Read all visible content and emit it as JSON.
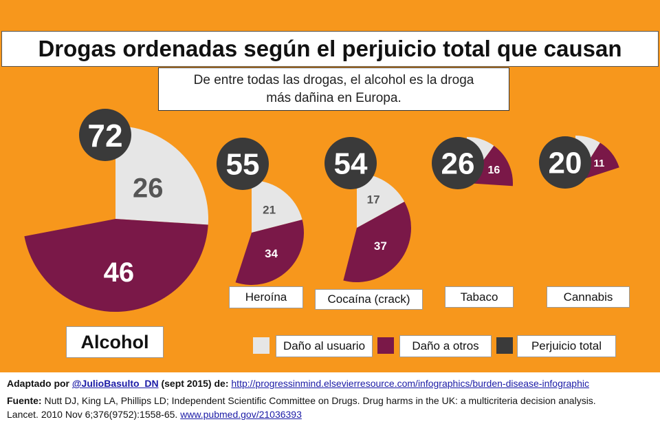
{
  "title": "Drogas ordenadas según el perjuicio total que causan",
  "subtitle_line1": "De entre todas las drogas, el alcohol es la droga",
  "subtitle_line2": "más dañina en Europa.",
  "colors": {
    "background": "#f7971c",
    "usuario": "#e6e6e6",
    "otros": "#7a1848",
    "total": "#3a3a3a"
  },
  "chart_data": {
    "type": "pie",
    "title": "Drogas ordenadas según el perjuicio total que causan",
    "subtitle": "De entre todas las drogas, el alcohol es la droga más dañina en Europa.",
    "scale_max": 100,
    "categories": [
      "Alcohol",
      "Heroína",
      "Cocaína (crack)",
      "Tabaco",
      "Cannabis"
    ],
    "series": [
      {
        "name": "Daño al usuario",
        "values": [
          26,
          21,
          17,
          10,
          9
        ]
      },
      {
        "name": "Daño a otros",
        "values": [
          46,
          34,
          37,
          16,
          11
        ]
      },
      {
        "name": "Perjuicio total",
        "values": [
          72,
          55,
          54,
          26,
          20
        ]
      }
    ],
    "legend": "bottom-right"
  },
  "legend": {
    "usuario": "Daño al usuario",
    "otros": "Daño a otros",
    "total": "Perjuicio total"
  },
  "footer": {
    "adapted_prefix": "Adaptado por",
    "adapted_author": "@JulioBasulto_DN",
    "adapted_date": "(sept 2015) de:",
    "adapted_url": "http://progressinmind.elsevierresource.com/infographics/burden-disease-infographic",
    "source_prefix": "Fuente:",
    "source_text": "Nutt DJ, King LA, Phillips LD; Independent Scientific Committee on Drugs. Drug harms in the UK: a multicriteria decision analysis.",
    "source_line2": "Lancet. 2010 Nov 6;376(9752):1558-65.",
    "source_url": "www.pubmed.gov/21036393"
  }
}
